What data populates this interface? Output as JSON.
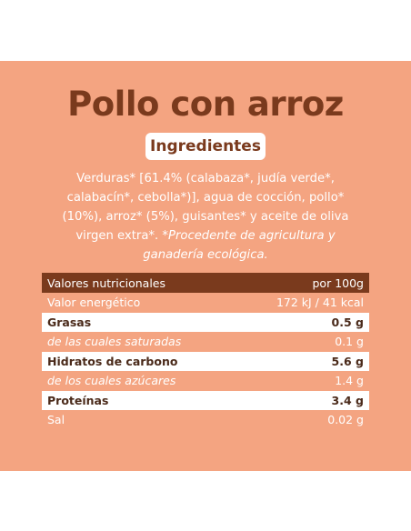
{
  "title": "Pollo con arroz",
  "section_label": "Ingredientes",
  "ingredients": {
    "text": "Verduras* [61.4% (calabaza*, judía verde*, calabacín*, cebolla*)], agua de cocción, pollo* (10%), arroz* (5%), guisantes* y aceite de oliva virgen extra*.",
    "note": "*Procedente de agricultura y ganadería ecológica."
  },
  "nutrition": {
    "header_label": "Valores nutricionales",
    "header_value": "por 100g",
    "rows": [
      {
        "label": "Valor energético",
        "value": "172 kJ / 41 kcal"
      },
      {
        "label": "Grasas",
        "value": "0.5 g"
      },
      {
        "label": "de las cuales saturadas",
        "value": "0.1 g"
      },
      {
        "label": "Hidratos de carbono",
        "value": "5.6 g"
      },
      {
        "label": "de los cuales azúcares",
        "value": "1.4 g"
      },
      {
        "label": "Proteínas",
        "value": "3.4 g"
      },
      {
        "label": "Sal",
        "value": "0.02 g"
      }
    ]
  },
  "colors": {
    "background": "#f4a481",
    "accent": "#7a3a1d"
  }
}
